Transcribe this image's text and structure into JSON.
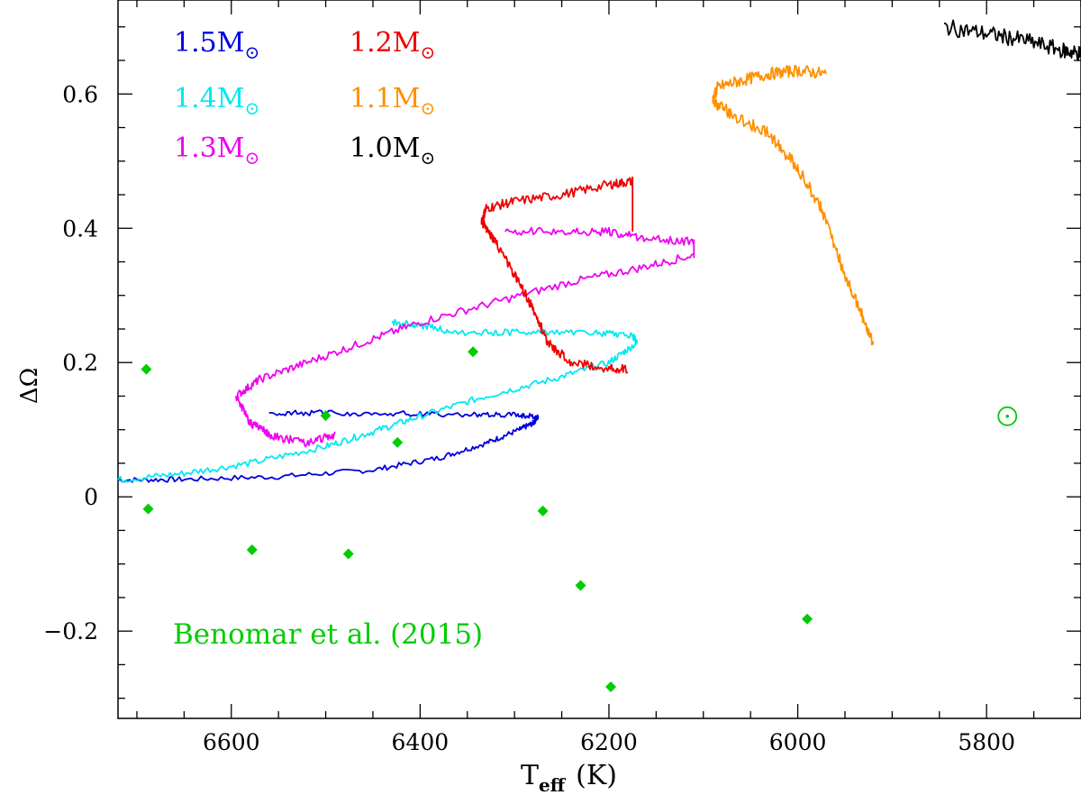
{
  "chart_data": {
    "type": "line",
    "title": "",
    "xlabel_main": "T",
    "xlabel_sub": "eff",
    "xlabel_unit": "(K)",
    "ylabel": "ΔΩ",
    "xlim": [
      6720,
      5700
    ],
    "ylim": [
      -0.33,
      0.74
    ],
    "xticks": [
      6600,
      6400,
      6200,
      6000,
      5800
    ],
    "xtick_labels": [
      "6600",
      "6400",
      "6200",
      "6000",
      "5800"
    ],
    "yticks": [
      -0.2,
      0,
      0.2,
      0.4,
      0.6
    ],
    "ytick_labels": [
      "−0.2",
      "0",
      "0.2",
      "0.4",
      "0.6"
    ],
    "legend": {
      "placement": "top-left",
      "entries": [
        {
          "label": "1.5M",
          "color": "#0000e0"
        },
        {
          "label": "1.4M",
          "color": "#00e8f0"
        },
        {
          "label": "1.3M",
          "color": "#f000f0"
        },
        {
          "label": "1.2M",
          "color": "#f00000"
        },
        {
          "label": "1.1M",
          "color": "#ff9000"
        },
        {
          "label": "1.0M",
          "color": "#000000"
        }
      ],
      "sun_symbol": "⊙"
    },
    "series": [
      {
        "name": "1.5M",
        "color": "#0000e0",
        "jitter": 0.004,
        "x": [
          6720,
          6650,
          6550,
          6450,
          6380,
          6330,
          6295,
          6280,
          6275,
          6300,
          6350,
          6420,
          6500,
          6560
        ],
        "y": [
          0.025,
          0.026,
          0.03,
          0.04,
          0.058,
          0.08,
          0.1,
          0.11,
          0.12,
          0.122,
          0.122,
          0.124,
          0.125,
          0.125
        ]
      },
      {
        "name": "1.4M",
        "color": "#00e8f0",
        "jitter": 0.005,
        "x": [
          6720,
          6650,
          6580,
          6500,
          6450,
          6400,
          6330,
          6260,
          6200,
          6170,
          6175,
          6220,
          6290,
          6360,
          6400,
          6430
        ],
        "y": [
          0.025,
          0.035,
          0.05,
          0.075,
          0.097,
          0.12,
          0.15,
          0.175,
          0.2,
          0.23,
          0.24,
          0.245,
          0.245,
          0.245,
          0.255,
          0.26
        ]
      },
      {
        "name": "1.3M",
        "color": "#f000f0",
        "jitter": 0.006,
        "x": [
          6490,
          6520,
          6555,
          6580,
          6595,
          6570,
          6520,
          6460,
          6400,
          6320,
          6240,
          6170,
          6110,
          6110,
          6160,
          6200,
          6250,
          6310
        ],
        "y": [
          0.093,
          0.08,
          0.09,
          0.11,
          0.15,
          0.175,
          0.2,
          0.23,
          0.26,
          0.29,
          0.32,
          0.34,
          0.36,
          0.38,
          0.385,
          0.395,
          0.395,
          0.395
        ]
      },
      {
        "name": "1.2M",
        "color": "#f00000",
        "jitter": 0.007,
        "x": [
          6180,
          6200,
          6240,
          6265,
          6280,
          6300,
          6320,
          6335,
          6330,
          6300,
          6250,
          6200,
          6175,
          6175
        ],
        "y": [
          0.19,
          0.19,
          0.2,
          0.23,
          0.28,
          0.33,
          0.38,
          0.41,
          0.43,
          0.44,
          0.45,
          0.465,
          0.47,
          0.4
        ]
      },
      {
        "name": "1.1M",
        "color": "#ff9000",
        "jitter": 0.009,
        "x": [
          5920,
          5935,
          5955,
          5975,
          6000,
          6030,
          6070,
          6090,
          6085,
          6060,
          6030,
          6000,
          5970
        ],
        "y": [
          0.23,
          0.28,
          0.35,
          0.43,
          0.49,
          0.54,
          0.57,
          0.59,
          0.61,
          0.62,
          0.63,
          0.635,
          0.63
        ]
      },
      {
        "name": "1.0M",
        "color": "#000000",
        "jitter": 0.012,
        "x": [
          5845,
          5800,
          5760,
          5720,
          5700
        ],
        "y": [
          0.7,
          0.69,
          0.68,
          0.665,
          0.66
        ]
      }
    ],
    "observations": {
      "name": "Benomar et al. (2015)",
      "color": "#00cc00",
      "x": [
        6690,
        6688,
        6578,
        6500,
        6476,
        6424,
        6344,
        6270,
        6230,
        6198,
        5990
      ],
      "y": [
        0.19,
        -0.018,
        -0.079,
        0.121,
        -0.085,
        0.081,
        0.216,
        -0.021,
        -0.132,
        -0.283,
        -0.182
      ]
    },
    "sun": {
      "label": "⊙",
      "x": 5778,
      "y": 0.12,
      "color": "#00cc00"
    }
  }
}
